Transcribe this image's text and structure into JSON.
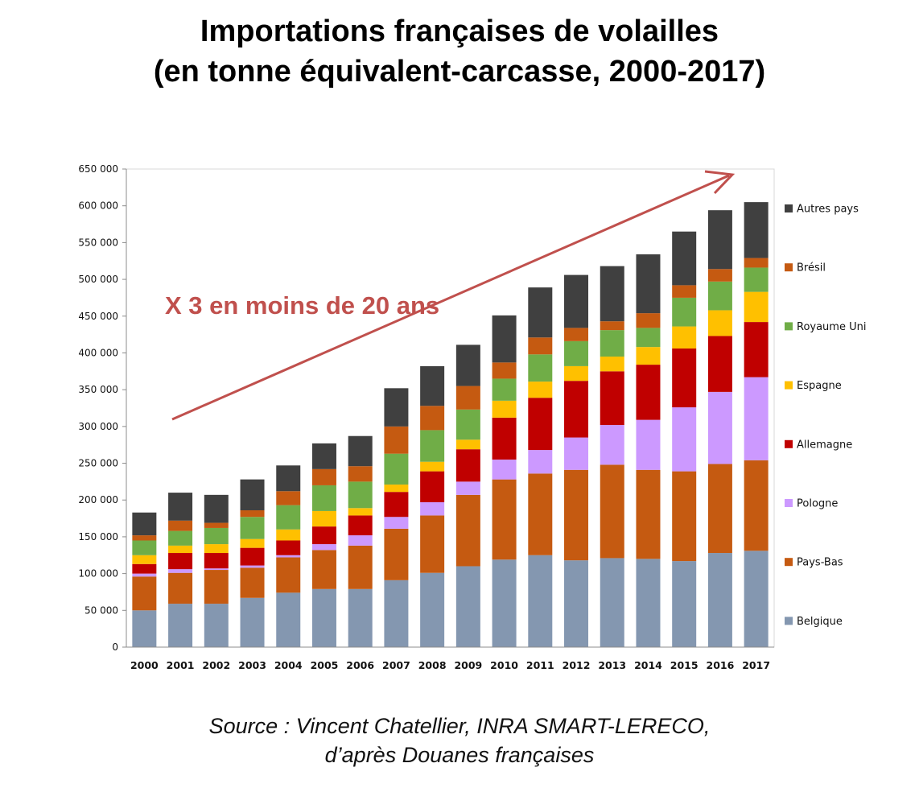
{
  "header": {
    "title_line1": "Importations françaises de volailles",
    "title_line2": "(en tonne équivalent-carcasse, 2000-2017)"
  },
  "footer": {
    "source_line1": "Source : Vincent Chatellier, INRA SMART-LERECO,",
    "source_line2": "d’après Douanes françaises"
  },
  "chart_data": {
    "type": "bar",
    "stacked": true,
    "title": "Importations françaises de volailles (en tonne équivalent-carcasse, 2000-2017)",
    "xlabel": "",
    "ylabel": "",
    "ylim": [
      0,
      650000
    ],
    "y_ticks": [
      0,
      50000,
      100000,
      150000,
      200000,
      250000,
      300000,
      350000,
      400000,
      450000,
      500000,
      550000,
      600000,
      650000
    ],
    "y_tick_labels": [
      "0",
      "50 000",
      "100 000",
      "150 000",
      "200 000",
      "250 000",
      "300 000",
      "350 000",
      "400 000",
      "450 000",
      "500 000",
      "550 000",
      "600 000",
      "650 000"
    ],
    "grid": false,
    "legend_position": "right",
    "categories": [
      "2000",
      "2001",
      "2002",
      "2003",
      "2004",
      "2005",
      "2006",
      "2007",
      "2008",
      "2009",
      "2010",
      "2011",
      "2012",
      "2013",
      "2014",
      "2015",
      "2016",
      "2017"
    ],
    "series": [
      {
        "name": "Belgique",
        "color": "#8497b0",
        "values": [
          50000,
          59000,
          59000,
          67000,
          74000,
          79000,
          79000,
          91000,
          101000,
          110000,
          119000,
          125000,
          118000,
          121000,
          120000,
          117000,
          128000,
          131000
        ]
      },
      {
        "name": "Pays-Bas",
        "color": "#c55a11",
        "values": [
          46000,
          42000,
          46000,
          41000,
          48000,
          53000,
          59000,
          70000,
          78000,
          97000,
          109000,
          111000,
          123000,
          127000,
          121000,
          122000,
          121000,
          123000
        ]
      },
      {
        "name": "Pologne",
        "color": "#cc99ff",
        "values": [
          4000,
          5000,
          2000,
          3000,
          3000,
          8000,
          14000,
          16000,
          18000,
          18000,
          27000,
          32000,
          44000,
          54000,
          68000,
          87000,
          98000,
          113000
        ]
      },
      {
        "name": "Allemagne",
        "color": "#c00000",
        "values": [
          13000,
          22000,
          21000,
          24000,
          20000,
          24000,
          27000,
          34000,
          42000,
          44000,
          57000,
          71000,
          77000,
          73000,
          75000,
          80000,
          76000,
          75000
        ]
      },
      {
        "name": "Espagne",
        "color": "#ffc000",
        "values": [
          12000,
          10000,
          12000,
          12000,
          15000,
          21000,
          10000,
          10000,
          13000,
          13000,
          23000,
          22000,
          20000,
          20000,
          24000,
          30000,
          35000,
          41000
        ]
      },
      {
        "name": "Royaume Uni",
        "color": "#70ad47",
        "values": [
          20000,
          20000,
          22000,
          30000,
          33000,
          35000,
          36000,
          42000,
          43000,
          41000,
          30000,
          37000,
          34000,
          36000,
          26000,
          39000,
          39000,
          33000
        ]
      },
      {
        "name": "Brésil",
        "color": "#c55a11",
        "values": [
          7000,
          14000,
          7000,
          9000,
          19000,
          22000,
          21000,
          37000,
          33000,
          32000,
          22000,
          23000,
          18000,
          12000,
          20000,
          17000,
          17000,
          13000
        ]
      },
      {
        "name": "Autres pays",
        "color": "#404040",
        "values": [
          31000,
          38000,
          38000,
          42000,
          35000,
          35000,
          41000,
          52000,
          54000,
          56000,
          64000,
          68000,
          72000,
          75000,
          80000,
          73000,
          80000,
          76000
        ]
      }
    ],
    "annotation": {
      "text": "X 3 en moins de 20 ans",
      "color": "#c0504d"
    }
  }
}
